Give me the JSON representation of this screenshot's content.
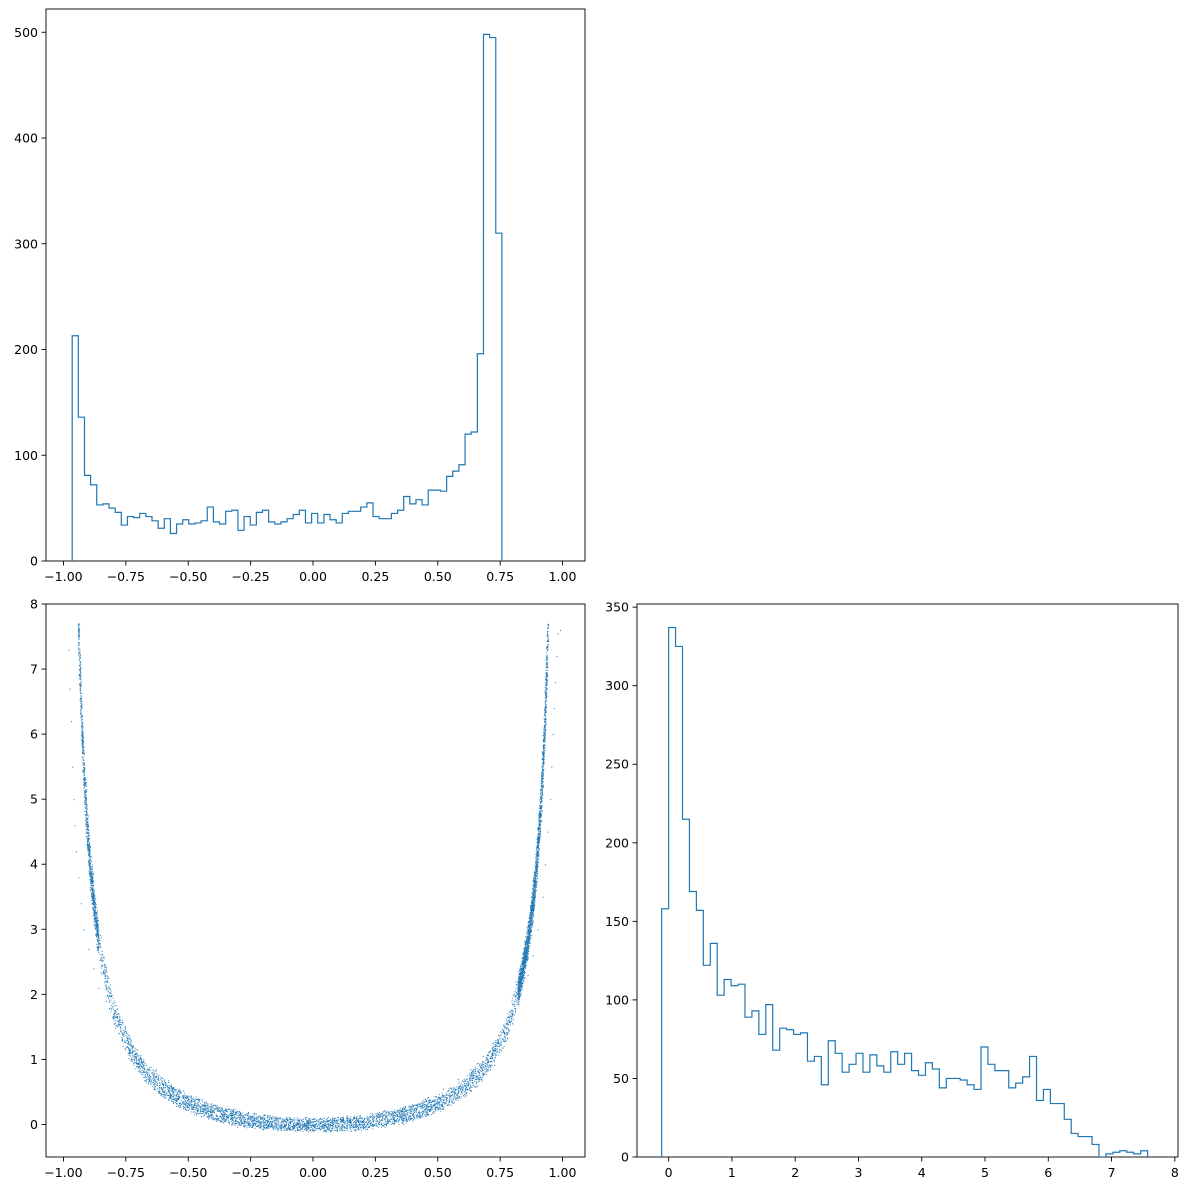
{
  "colors": {
    "series": "#1f77b4",
    "axes": "#000000",
    "background": "#ffffff"
  },
  "chart_data": [
    {
      "id": "hist-x",
      "type": "histogram",
      "title": "",
      "xlabel": "",
      "ylabel": "",
      "grid": false,
      "xlim": [
        -1.07,
        1.09
      ],
      "ylim": [
        0,
        522
      ],
      "xticks": [
        -1.0,
        -0.75,
        -0.5,
        -0.25,
        0.0,
        0.25,
        0.5,
        0.75,
        1.0
      ],
      "xtick_labels": [
        "−1.00",
        "−0.75",
        "−0.50",
        "−0.25",
        "0.00",
        "0.25",
        "0.50",
        "0.75",
        "1.00"
      ],
      "yticks": [
        0,
        100,
        200,
        300,
        400,
        500
      ],
      "ytick_labels": [
        "0",
        "100",
        "200",
        "300",
        "400",
        "500"
      ],
      "bin_start": -0.965,
      "bin_width": 0.0246,
      "counts": [
        213,
        136,
        81,
        72,
        53,
        54,
        50,
        46,
        34,
        42,
        41,
        45,
        42,
        38,
        31,
        40,
        26,
        35,
        39,
        35,
        36,
        38,
        51,
        37,
        35,
        47,
        48,
        29,
        42,
        34,
        46,
        48,
        37,
        35,
        37,
        40,
        44,
        48,
        36,
        45,
        36,
        44,
        39,
        36,
        45,
        47,
        47,
        51,
        55,
        42,
        40,
        40,
        45,
        48,
        61,
        54,
        58,
        53,
        67,
        67,
        66,
        80,
        85,
        91,
        120,
        122,
        196,
        498,
        495,
        310
      ]
    },
    {
      "id": "scatter-xy",
      "type": "scatter",
      "title": "",
      "xlabel": "",
      "ylabel": "",
      "grid": false,
      "xlim": [
        -1.07,
        1.09
      ],
      "ylim": [
        -0.5,
        8.0
      ],
      "xticks": [
        -1.0,
        -0.75,
        -0.5,
        -0.25,
        0.0,
        0.25,
        0.5,
        0.75,
        1.0
      ],
      "xtick_labels": [
        "−1.00",
        "−0.75",
        "−0.50",
        "−0.25",
        "0.00",
        "0.25",
        "0.50",
        "0.75",
        "1.00"
      ],
      "yticks": [
        0,
        1,
        2,
        3,
        4,
        5,
        6,
        7,
        8
      ],
      "ytick_labels": [
        "0",
        "1",
        "2",
        "3",
        "4",
        "5",
        "6",
        "7",
        "8"
      ],
      "relation": "y ≈ x² / (1 − x²)",
      "points": [
        {
          "x": -0.98,
          "y": 7.3
        },
        {
          "x": -0.975,
          "y": 6.7
        },
        {
          "x": -0.97,
          "y": 6.2
        },
        {
          "x": -0.965,
          "y": 5.5
        },
        {
          "x": -0.96,
          "y": 5.0
        },
        {
          "x": -0.955,
          "y": 4.6
        },
        {
          "x": -0.95,
          "y": 4.2
        },
        {
          "x": -0.94,
          "y": 3.8
        },
        {
          "x": -0.93,
          "y": 3.4
        },
        {
          "x": -0.92,
          "y": 3.0
        },
        {
          "x": -0.9,
          "y": 2.7
        },
        {
          "x": -0.88,
          "y": 2.4
        },
        {
          "x": -0.86,
          "y": 2.1
        },
        {
          "x": -0.83,
          "y": 1.9
        },
        {
          "x": -0.8,
          "y": 1.7
        },
        {
          "x": -0.76,
          "y": 1.4
        },
        {
          "x": -0.72,
          "y": 1.2
        },
        {
          "x": -0.68,
          "y": 1.0
        },
        {
          "x": -0.63,
          "y": 0.85
        },
        {
          "x": -0.58,
          "y": 0.68
        },
        {
          "x": -0.52,
          "y": 0.52
        },
        {
          "x": -0.46,
          "y": 0.4
        },
        {
          "x": -0.4,
          "y": 0.3
        },
        {
          "x": -0.33,
          "y": 0.2
        },
        {
          "x": -0.26,
          "y": 0.12
        },
        {
          "x": -0.18,
          "y": 0.05
        },
        {
          "x": -0.1,
          "y": 0.0
        },
        {
          "x": 0.0,
          "y": -0.02
        },
        {
          "x": 0.1,
          "y": 0.02
        },
        {
          "x": 0.18,
          "y": 0.06
        },
        {
          "x": 0.26,
          "y": 0.12
        },
        {
          "x": 0.33,
          "y": 0.2
        },
        {
          "x": 0.4,
          "y": 0.3
        },
        {
          "x": 0.46,
          "y": 0.42
        },
        {
          "x": 0.52,
          "y": 0.55
        },
        {
          "x": 0.58,
          "y": 0.7
        },
        {
          "x": 0.63,
          "y": 0.85
        },
        {
          "x": 0.68,
          "y": 1.05
        },
        {
          "x": 0.72,
          "y": 1.25
        },
        {
          "x": 0.76,
          "y": 1.45
        },
        {
          "x": 0.8,
          "y": 1.75
        },
        {
          "x": 0.83,
          "y": 2.0
        },
        {
          "x": 0.86,
          "y": 2.3
        },
        {
          "x": 0.88,
          "y": 2.6
        },
        {
          "x": 0.9,
          "y": 3.0
        },
        {
          "x": 0.92,
          "y": 3.5
        },
        {
          "x": 0.93,
          "y": 4.0
        },
        {
          "x": 0.94,
          "y": 4.5
        },
        {
          "x": 0.95,
          "y": 5.0
        },
        {
          "x": 0.955,
          "y": 5.5
        },
        {
          "x": 0.96,
          "y": 6.0
        },
        {
          "x": 0.965,
          "y": 6.4
        },
        {
          "x": 0.97,
          "y": 6.8
        },
        {
          "x": 0.975,
          "y": 7.2
        },
        {
          "x": 0.98,
          "y": 7.55
        },
        {
          "x": 0.99,
          "y": 7.6
        }
      ]
    },
    {
      "id": "hist-y",
      "type": "histogram",
      "title": "",
      "xlabel": "",
      "ylabel": "",
      "grid": false,
      "xlim": [
        -0.5,
        8.05
      ],
      "ylim": [
        0,
        352
      ],
      "xticks": [
        0,
        1,
        2,
        3,
        4,
        5,
        6,
        7,
        8
      ],
      "xtick_labels": [
        "0",
        "1",
        "2",
        "3",
        "4",
        "5",
        "6",
        "7",
        "8"
      ],
      "yticks": [
        0,
        50,
        100,
        150,
        200,
        250,
        300,
        350
      ],
      "ytick_labels": [
        "0",
        "50",
        "100",
        "150",
        "200",
        "250",
        "300",
        "350"
      ],
      "bin_start": -0.11,
      "bin_width": 0.1097,
      "counts": [
        158,
        337,
        325,
        215,
        169,
        157,
        122,
        136,
        103,
        113,
        109,
        110,
        89,
        93,
        78,
        97,
        68,
        82,
        81,
        78,
        79,
        61,
        64,
        46,
        74,
        66,
        54,
        59,
        66,
        54,
        65,
        58,
        54,
        67,
        59,
        66,
        55,
        52,
        60,
        56,
        44,
        50,
        50,
        49,
        46,
        43,
        70,
        59,
        55,
        55,
        44,
        47,
        51,
        64,
        36,
        43,
        34,
        34,
        24,
        15,
        13,
        13,
        8,
        0,
        2,
        3,
        4,
        3,
        2,
        4
      ]
    }
  ]
}
